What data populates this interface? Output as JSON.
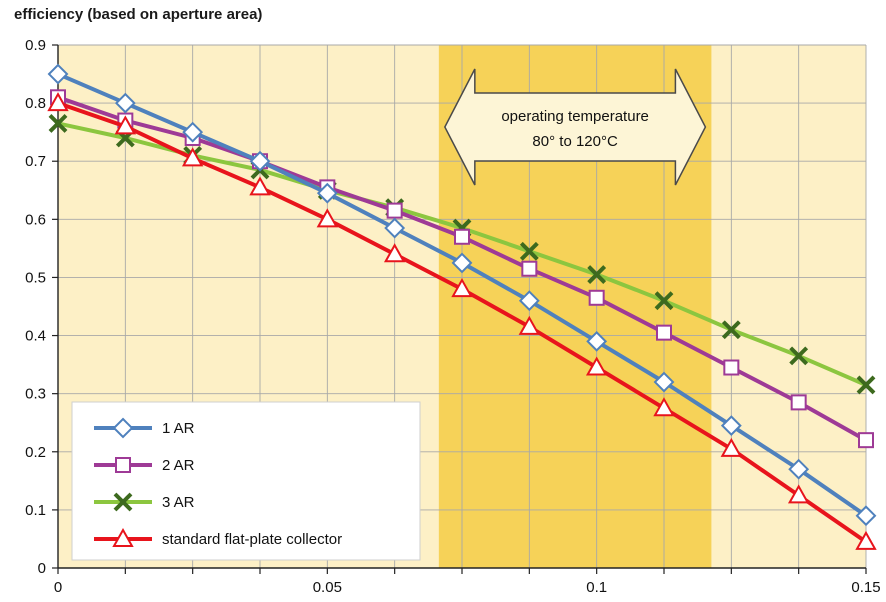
{
  "chart_data": {
    "type": "line",
    "title": "efficiency (based on aperture area)",
    "xlabel": "",
    "ylabel": "",
    "xlim": [
      0,
      0.15
    ],
    "ylim": [
      0,
      0.9
    ],
    "x_ticks": [
      "0",
      "0.05",
      "0.1",
      "0.15"
    ],
    "y_ticks": [
      "0",
      "0.1",
      "0.2",
      "0.3",
      "0.4",
      "0.5",
      "0.6",
      "0.7",
      "0.8",
      "0.9"
    ],
    "grid": true,
    "highlight_band": {
      "x_range": [
        0.0707,
        0.1213
      ],
      "label_lines": [
        "operating temperature",
        "80° to 120°C"
      ]
    },
    "legend_position": "bottom-left",
    "x": [
      0,
      0.0125,
      0.025,
      0.0375,
      0.05,
      0.0625,
      0.075,
      0.0875,
      0.1,
      0.1125,
      0.125,
      0.1375,
      0.15
    ],
    "series": [
      {
        "name": "1 AR",
        "color": "#4f81bd",
        "marker": "diamond",
        "values": [
          0.85,
          0.8,
          0.75,
          0.7,
          0.645,
          0.585,
          0.525,
          0.46,
          0.39,
          0.32,
          0.245,
          0.17,
          0.09
        ]
      },
      {
        "name": "2 AR",
        "color": "#9e3a96",
        "marker": "square",
        "values": [
          0.81,
          0.77,
          0.74,
          0.7,
          0.655,
          0.615,
          0.57,
          0.515,
          0.465,
          0.405,
          0.345,
          0.285,
          0.22
        ]
      },
      {
        "name": "3 AR",
        "color": "#8cc63f",
        "marker": "x",
        "values": [
          0.765,
          0.74,
          0.71,
          0.685,
          0.65,
          0.62,
          0.585,
          0.545,
          0.505,
          0.46,
          0.41,
          0.365,
          0.315
        ]
      },
      {
        "name": "standard flat-plate collector",
        "color": "#e8141c",
        "marker": "triangle",
        "values": [
          0.8,
          0.76,
          0.705,
          0.655,
          0.6,
          0.54,
          0.48,
          0.415,
          0.345,
          0.275,
          0.205,
          0.125,
          0.045
        ]
      }
    ]
  },
  "colors": {
    "plot_background": "#fdf0c6",
    "band_fill": "#f6d258",
    "grid": "#a8a8a8",
    "callout_fill": "#fdf5d6",
    "callout_stroke": "#4a4a4a"
  }
}
